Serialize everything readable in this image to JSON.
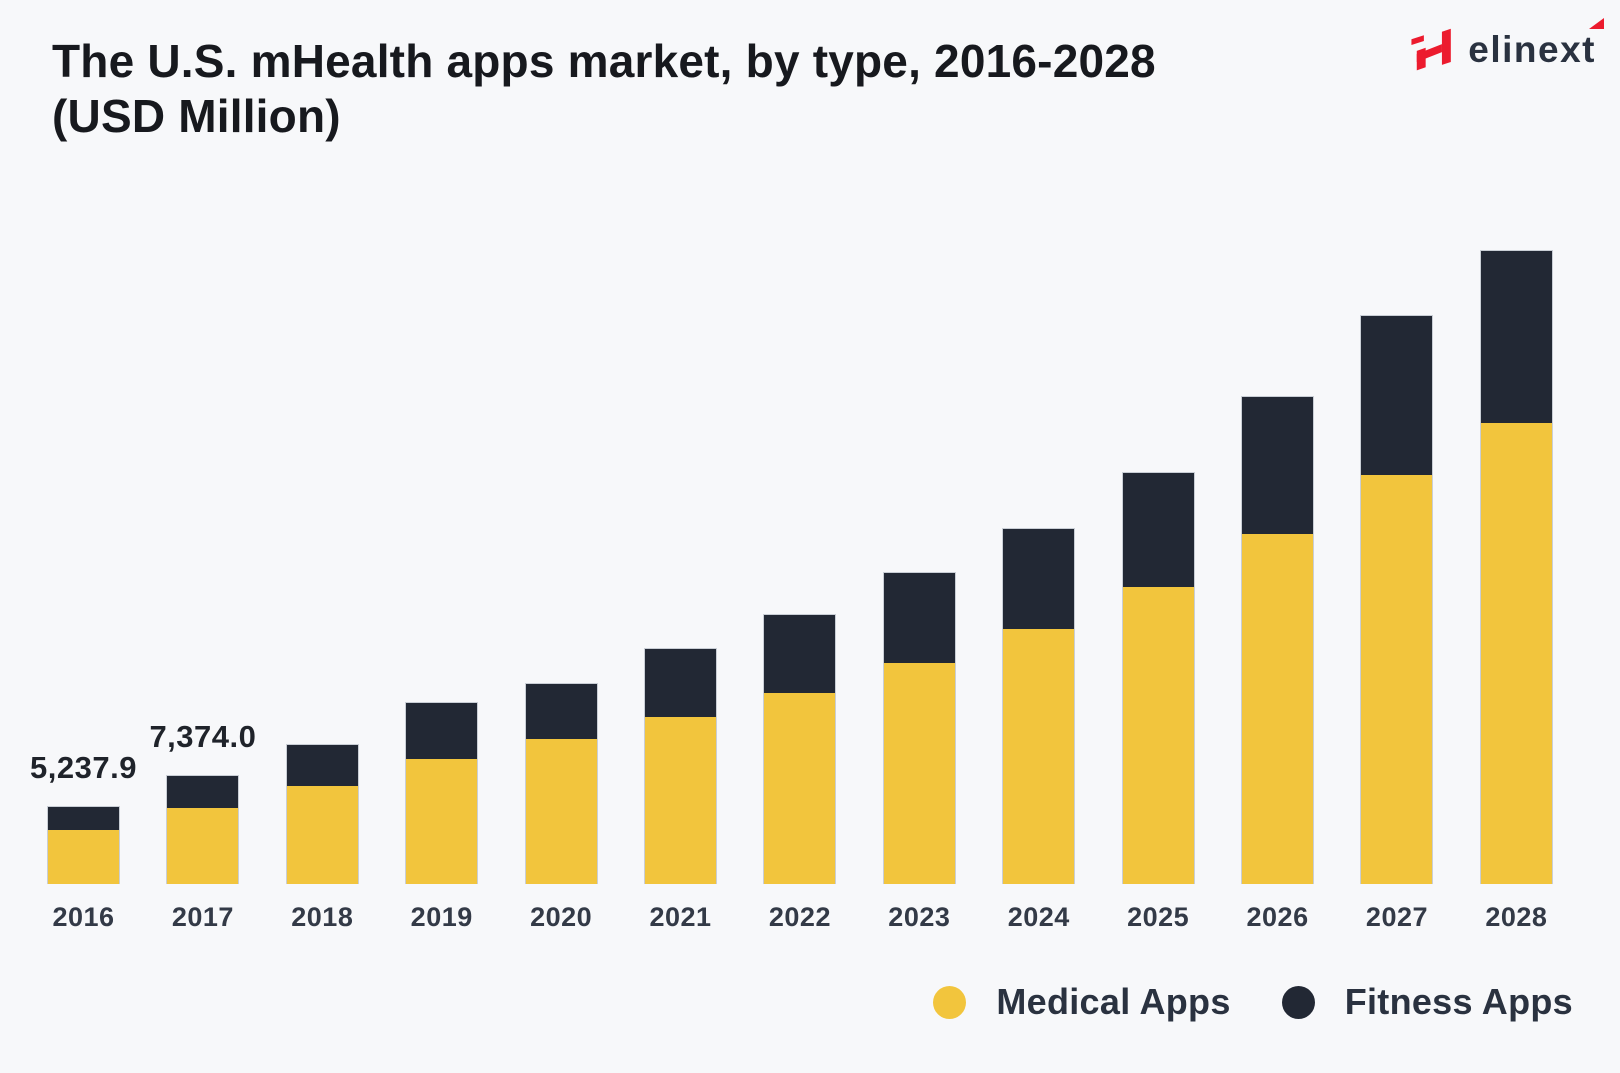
{
  "page": {
    "background": "#F7F8FA"
  },
  "header": {
    "title_line1": "The U.S. mHealth apps market, by type, 2016-2028",
    "title_line2": "(USD Million)"
  },
  "logo": {
    "text": "elinext"
  },
  "colors": {
    "background": "#F7F8FA",
    "medical": "#F2C53D",
    "fitness": "#222834",
    "title": "#17191E",
    "axis_label": "#333A47",
    "value_label": "#1F232A",
    "logo_red": "#EC1B2E",
    "logo_text": "#2A3240"
  },
  "chart_data": {
    "type": "bar",
    "stacked": true,
    "title": "The U.S. mHealth apps market, by type, 2016-2028 (USD Million)",
    "unit": "USD Million",
    "categories": [
      2016,
      2017,
      2018,
      2019,
      2020,
      2021,
      2022,
      2023,
      2024,
      2025,
      2026,
      2027,
      2028
    ],
    "series": [
      {
        "name": "Medical Apps",
        "color_key": "medical",
        "values": [
          3706,
          5202,
          6660,
          8520,
          9870,
          11390,
          13030,
          15050,
          17370,
          20280,
          23850,
          27890,
          31420
        ]
      },
      {
        "name": "Fitness Apps",
        "color_key": "fitness",
        "values": [
          1532,
          2172,
          2820,
          3820,
          3790,
          4640,
          5300,
          6160,
          6820,
          7780,
          9340,
          10840,
          11730
        ]
      }
    ],
    "totals": [
      5237.9,
      7374.0,
      9480,
      12340,
      13660,
      16030,
      18330,
      21210,
      24190,
      28060,
      33190,
      38730,
      43150
    ],
    "bar_labels": {
      "2016": "5,237.9",
      "2017": "7,374.0"
    },
    "xlabel": "",
    "ylabel": "",
    "ylim": [
      0,
      45000
    ],
    "grid": false,
    "legend_position": "bottom-right"
  },
  "legend": {
    "items": [
      {
        "label": "Medical Apps",
        "color": "#F2C53D"
      },
      {
        "label": "Fitness Apps",
        "color": "#222834"
      }
    ]
  }
}
